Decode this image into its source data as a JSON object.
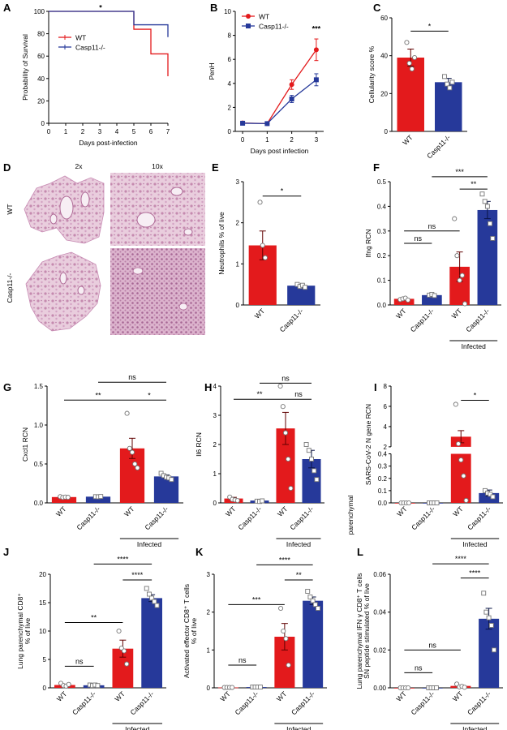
{
  "colors": {
    "wt": "#e31a1c",
    "ko": "#26399a",
    "axis": "#000000"
  },
  "histology": {
    "panel": "D",
    "col_labels": [
      "2x",
      "10x"
    ],
    "row_labels": [
      "WT",
      "Casp11-/-"
    ]
  },
  "chart_data": [
    {
      "panel": "A",
      "type": "line",
      "ylabel": "Probability of Survival",
      "xlabel": "Days post-infection",
      "xlim": [
        0,
        7
      ],
      "ylim": [
        0,
        100
      ],
      "xticks": [
        0,
        1,
        2,
        3,
        4,
        5,
        6,
        7
      ],
      "yticks": [
        0,
        20,
        40,
        60,
        80,
        100
      ],
      "legend": "top-left",
      "series": [
        {
          "name": "WT",
          "color": "wt",
          "x": [
            0,
            5,
            5,
            6,
            6,
            7,
            7
          ],
          "y": [
            100,
            100,
            84,
            84,
            62,
            62,
            42
          ]
        },
        {
          "name": "Casp11-/-",
          "color": "ko",
          "x": [
            0,
            5,
            5,
            7,
            7
          ],
          "y": [
            100,
            100,
            88,
            88,
            77
          ]
        }
      ],
      "annotations": [
        {
          "text": "*",
          "x": 3.05,
          "y": 104
        }
      ]
    },
    {
      "panel": "B",
      "type": "line",
      "ylabel": "PenH",
      "xlabel": "Days post infection",
      "xlim": [
        -0.3,
        3.3
      ],
      "ylim": [
        0,
        10
      ],
      "xticks": [
        0,
        1,
        2,
        3
      ],
      "yticks": [
        0,
        2,
        4,
        6,
        8,
        10
      ],
      "legend": "top-left",
      "series": [
        {
          "name": "WT",
          "color": "wt",
          "x": [
            0,
            1,
            2,
            3
          ],
          "y": [
            0.7,
            0.65,
            3.9,
            6.8
          ],
          "err": [
            0.05,
            0.05,
            0.4,
            0.9
          ]
        },
        {
          "name": "Casp11-/-",
          "color": "ko",
          "x": [
            0,
            1,
            2,
            3
          ],
          "y": [
            0.68,
            0.65,
            2.7,
            4.3
          ],
          "err": [
            0.05,
            0.05,
            0.3,
            0.5
          ]
        }
      ],
      "annotations": [
        {
          "text": "***",
          "x": 3,
          "y": 8.6
        }
      ]
    },
    {
      "panel": "C",
      "type": "bar",
      "ylabel": "Cellularity score %",
      "ylim": [
        0,
        60
      ],
      "yticks": [
        0,
        20,
        40,
        60
      ],
      "groups": [
        {
          "label": "WT",
          "value": 39,
          "err": 4.5,
          "color": "wt",
          "marker": "o",
          "points": [
            47,
            36,
            33,
            39
          ]
        },
        {
          "label": "Casp11-/-",
          "value": 26,
          "err": 2,
          "color": "ko",
          "marker": "s",
          "points": [
            29,
            25,
            23,
            26
          ]
        }
      ],
      "brackets": [
        {
          "from": 0,
          "to": 1,
          "y": 53,
          "text": "*"
        }
      ]
    },
    {
      "panel": "E",
      "type": "bar",
      "ylabel": "Neutrophils % of live",
      "ylim": [
        0,
        3
      ],
      "yticks": [
        0,
        1,
        2,
        3
      ],
      "groups": [
        {
          "label": "WT",
          "value": 1.45,
          "err": 0.35,
          "color": "wt",
          "marker": "o",
          "points": [
            2.5,
            1.45,
            1.15
          ]
        },
        {
          "label": "Casp11-/-",
          "value": 0.47,
          "err": 0.03,
          "color": "ko",
          "marker": "s",
          "points": [
            0.5,
            0.45,
            0.48,
            0.43
          ]
        }
      ],
      "brackets": [
        {
          "from": 0,
          "to": 1,
          "y": 2.65,
          "text": "*"
        }
      ]
    },
    {
      "panel": "F",
      "type": "bar",
      "ylabel": "Ifng RCN",
      "ylim": [
        0,
        0.5
      ],
      "yticks": [
        0.0,
        0.1,
        0.2,
        0.3,
        0.4,
        0.5
      ],
      "decimals": 1,
      "groups": [
        {
          "label": "WT",
          "value": 0.025,
          "err": 0.003,
          "color": "wt",
          "marker": "o",
          "points": [
            0.022,
            0.025,
            0.028,
            0.02
          ]
        },
        {
          "label": "Casp11-/-",
          "value": 0.04,
          "err": 0.003,
          "color": "ko",
          "marker": "s",
          "points": [
            0.04,
            0.043,
            0.038
          ]
        },
        {
          "label": "WT",
          "value": 0.155,
          "err": 0.06,
          "color": "wt",
          "marker": "o",
          "points": [
            0.35,
            0.2,
            0.1,
            0.12,
            0.005
          ]
        },
        {
          "label": "Casp11-/-",
          "value": 0.385,
          "err": 0.035,
          "color": "ko",
          "marker": "s",
          "points": [
            0.45,
            0.42,
            0.4,
            0.33,
            0.27
          ]
        }
      ],
      "brackets": [
        {
          "from": 0,
          "to": 1,
          "y": 0.25,
          "text": "ns"
        },
        {
          "from": 0,
          "to": 2,
          "y": 0.3,
          "text": "ns"
        },
        {
          "from": 2,
          "to": 3,
          "y": 0.47,
          "text": "**"
        },
        {
          "from": 1,
          "to": 3,
          "y": 0.52,
          "text": "***"
        }
      ],
      "group_label": {
        "text": "Infected",
        "from": 2,
        "to": 3
      }
    },
    {
      "panel": "G",
      "type": "bar",
      "ylabel": "Cxcl1 RCN",
      "ylim": [
        0,
        1.5
      ],
      "yticks": [
        0.0,
        0.5,
        1.0,
        1.5
      ],
      "decimals": 1,
      "groups": [
        {
          "label": "WT",
          "value": 0.075,
          "err": 0.005,
          "color": "wt",
          "marker": "o",
          "points": [
            0.08,
            0.07,
            0.075,
            0.072
          ]
        },
        {
          "label": "Casp11-/-",
          "value": 0.08,
          "err": 0.005,
          "color": "ko",
          "marker": "s",
          "points": [
            0.08,
            0.078,
            0.082
          ]
        },
        {
          "label": "WT",
          "value": 0.7,
          "err": 0.13,
          "color": "wt",
          "marker": "o",
          "points": [
            1.15,
            0.7,
            0.65,
            0.5,
            0.45
          ]
        },
        {
          "label": "Casp11-/-",
          "value": 0.34,
          "err": 0.02,
          "color": "ko",
          "marker": "s",
          "points": [
            0.38,
            0.35,
            0.33,
            0.32,
            0.3
          ]
        }
      ],
      "brackets": [
        {
          "from": 0,
          "to": 2,
          "y": 1.32,
          "text": "**"
        },
        {
          "from": 2,
          "to": 3,
          "y": 1.32,
          "text": "*"
        },
        {
          "from": 1,
          "to": 3,
          "y": 1.55,
          "text": "ns"
        }
      ],
      "group_label": {
        "text": "Infected",
        "from": 2,
        "to": 3
      }
    },
    {
      "panel": "H",
      "type": "bar",
      "ylabel": "Il6 RCN",
      "ylim": [
        0,
        4
      ],
      "yticks": [
        0,
        1,
        2,
        3,
        4
      ],
      "groups": [
        {
          "label": "WT",
          "value": 0.15,
          "err": 0.04,
          "color": "wt",
          "marker": "o",
          "points": [
            0.2,
            0.12,
            0.1,
            0.08
          ]
        },
        {
          "label": "Casp11-/-",
          "value": 0.08,
          "err": 0.02,
          "color": "ko",
          "marker": "s",
          "points": [
            0.06,
            0.05,
            0.07
          ]
        },
        {
          "label": "WT",
          "value": 2.55,
          "err": 0.55,
          "color": "wt",
          "marker": "o",
          "points": [
            4.0,
            3.3,
            2.4,
            1.5,
            0.5
          ]
        },
        {
          "label": "Casp11-/-",
          "value": 1.5,
          "err": 0.3,
          "color": "ko",
          "marker": "s",
          "points": [
            2.0,
            1.8,
            1.5,
            1.1,
            0.8
          ]
        }
      ],
      "brackets": [
        {
          "from": 0,
          "to": 2,
          "y": 3.55,
          "text": "**"
        },
        {
          "from": 2,
          "to": 3,
          "y": 3.55,
          "text": "ns"
        },
        {
          "from": 1,
          "to": 3,
          "y": 4.1,
          "text": "ns"
        }
      ],
      "group_label": {
        "text": "Infected",
        "from": 2,
        "to": 3
      },
      "side_text": "parenchymal"
    },
    {
      "panel": "I",
      "type": "bar",
      "ylabel": "SARS-CoV-2 N gene RCN",
      "broken_axis": true,
      "upper_range": [
        2,
        8
      ],
      "lower_range": [
        0,
        0.4
      ],
      "upper_ticks": [
        2,
        4,
        6,
        8
      ],
      "lower_ticks": [
        0.0,
        0.1,
        0.2,
        0.3,
        0.4
      ],
      "groups": [
        {
          "label": "WT",
          "value": 0,
          "err": 0,
          "color": "wt",
          "marker": "o",
          "points": [
            0,
            0,
            0,
            0
          ]
        },
        {
          "label": "Casp11-/-",
          "value": 0,
          "err": 0,
          "color": "ko",
          "marker": "s",
          "points": [
            0,
            0,
            0,
            0
          ]
        },
        {
          "label": "WT",
          "value": 3.0,
          "err": 0.6,
          "color": "wt",
          "marker": "o",
          "points": [
            6.2,
            2.3,
            0.35,
            0.22,
            0.02
          ]
        },
        {
          "label": "Casp11-/-",
          "value": 0.08,
          "err": 0.025,
          "color": "ko",
          "marker": "s",
          "points": [
            0.1,
            0.08,
            0.07,
            0.05
          ]
        }
      ],
      "brackets": [
        {
          "from": 2,
          "to": 3,
          "y": 6.6,
          "text": "*"
        }
      ],
      "group_label": {
        "text": "Infected",
        "from": 2,
        "to": 3
      }
    },
    {
      "panel": "J",
      "type": "bar",
      "ylabel": "Lung parenchymal CD8⁺ % of live",
      "ylabel_lines": [
        "Lung parenchymal CD8⁺",
        "% of live"
      ],
      "ylim": [
        0,
        20
      ],
      "yticks": [
        0,
        5,
        10,
        15,
        20
      ],
      "groups": [
        {
          "label": "WT",
          "value": 0.5,
          "err": 0.15,
          "color": "wt",
          "marker": "o",
          "points": [
            0.8,
            0.4,
            0.3,
            0.6
          ]
        },
        {
          "label": "Casp11-/-",
          "value": 0.45,
          "err": 0.1,
          "color": "ko",
          "marker": "s",
          "points": [
            0.5,
            0.4,
            0.5,
            0.4
          ]
        },
        {
          "label": "WT",
          "value": 6.9,
          "err": 1.5,
          "color": "wt",
          "marker": "o",
          "points": [
            10,
            7,
            6.5,
            4.2
          ]
        },
        {
          "label": "Casp11-/-",
          "value": 15.8,
          "err": 0.6,
          "color": "ko",
          "marker": "s",
          "points": [
            17.5,
            16.5,
            15.8,
            15.2,
            14.5
          ]
        }
      ],
      "brackets": [
        {
          "from": 0,
          "to": 1,
          "y": 3.8,
          "text": "ns"
        },
        {
          "from": 0,
          "to": 2,
          "y": 11.5,
          "text": "**"
        },
        {
          "from": 2,
          "to": 3,
          "y": 19,
          "text": "****"
        },
        {
          "from": 1,
          "to": 3,
          "y": 21.8,
          "text": "****"
        }
      ],
      "group_label": {
        "text": "Infected",
        "from": 2,
        "to": 3
      }
    },
    {
      "panel": "K",
      "type": "bar",
      "ylabel": "Activated effector CD8⁺ T cells % of live",
      "ylabel_lines": [
        "Activated effector CD8⁺ T cells",
        "% of live"
      ],
      "ylim": [
        0,
        3
      ],
      "yticks": [
        0,
        1,
        2,
        3
      ],
      "groups": [
        {
          "label": "WT",
          "value": 0.01,
          "err": 0.005,
          "color": "wt",
          "marker": "o",
          "points": [
            0.01,
            0.01,
            0.01,
            0.01
          ]
        },
        {
          "label": "Casp11-/-",
          "value": 0.02,
          "err": 0.005,
          "color": "ko",
          "marker": "s",
          "points": [
            0.02,
            0.02,
            0.02,
            0.02
          ]
        },
        {
          "label": "WT",
          "value": 1.35,
          "err": 0.35,
          "color": "wt",
          "marker": "o",
          "points": [
            2.1,
            1.5,
            1.3,
            0.6
          ]
        },
        {
          "label": "Casp11-/-",
          "value": 2.3,
          "err": 0.1,
          "color": "ko",
          "marker": "s",
          "points": [
            2.55,
            2.4,
            2.3,
            2.2,
            2.1
          ]
        }
      ],
      "brackets": [
        {
          "from": 0,
          "to": 1,
          "y": 0.6,
          "text": "ns"
        },
        {
          "from": 0,
          "to": 2,
          "y": 2.2,
          "text": "***"
        },
        {
          "from": 2,
          "to": 3,
          "y": 2.85,
          "text": "**"
        },
        {
          "from": 1,
          "to": 3,
          "y": 3.25,
          "text": "****"
        }
      ],
      "group_label": {
        "text": "Infected",
        "from": 2,
        "to": 3
      }
    },
    {
      "panel": "L",
      "type": "bar",
      "ylabel": "Lung parenchymal IFN γ CD8⁺ T cells SN peptide stimulated % of live",
      "ylabel_lines": [
        "Lung parenchymal IFN γ CD8⁺ T cells",
        "SN peptide stimulated % of live"
      ],
      "ylim": [
        0,
        0.06
      ],
      "yticks": [
        0.0,
        0.02,
        0.04,
        0.06
      ],
      "decimals": 2,
      "groups": [
        {
          "label": "WT",
          "value": 0,
          "err": 0,
          "color": "wt",
          "marker": "o",
          "points": [
            0,
            0,
            0,
            0
          ]
        },
        {
          "label": "Casp11-/-",
          "value": 0,
          "err": 0,
          "color": "ko",
          "marker": "s",
          "points": [
            0,
            0,
            0,
            0
          ]
        },
        {
          "label": "WT",
          "value": 0.001,
          "err": 0.0005,
          "color": "wt",
          "marker": "o",
          "points": [
            0.002,
            0.0005,
            0.0008,
            0.0003
          ]
        },
        {
          "label": "Casp11-/-",
          "value": 0.0365,
          "err": 0.0055,
          "color": "ko",
          "marker": "s",
          "points": [
            0.05,
            0.04,
            0.037,
            0.033,
            0.02
          ]
        }
      ],
      "brackets": [
        {
          "from": 0,
          "to": 1,
          "y": 0.008,
          "text": "ns"
        },
        {
          "from": 0,
          "to": 2,
          "y": 0.02,
          "text": "ns"
        },
        {
          "from": 2,
          "to": 3,
          "y": 0.058,
          "text": "****"
        },
        {
          "from": 1,
          "to": 3,
          "y": 0.0655,
          "text": "****"
        }
      ],
      "group_label": {
        "text": "Infected",
        "from": 2,
        "to": 3
      }
    }
  ]
}
